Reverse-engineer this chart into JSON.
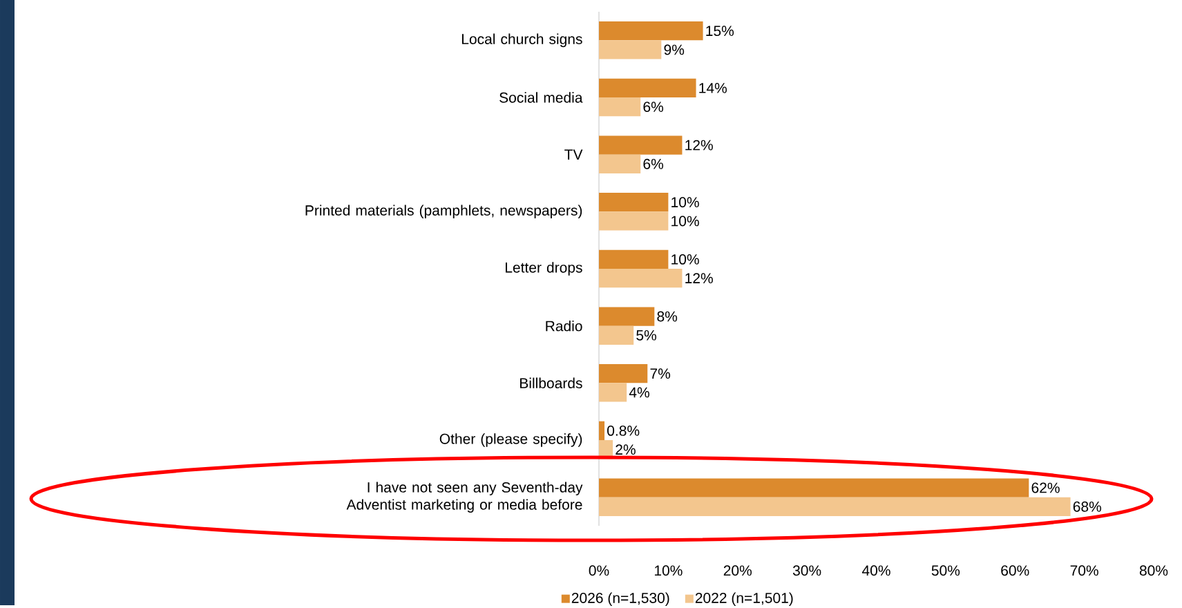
{
  "chart_data": {
    "type": "bar",
    "orientation": "horizontal",
    "categories": [
      "Local church signs",
      "Social media",
      "TV",
      "Printed materials (pamphlets, newspapers)",
      "Letter drops",
      "Radio",
      "Billboards",
      "Other (please specify)",
      "I have not seen any Seventh-day Adventist marketing or media before"
    ],
    "series": [
      {
        "name": "2026 (n=1,530)",
        "color": "#dc8a2d",
        "values": [
          15,
          14,
          12,
          10,
          10,
          8,
          7,
          0.8,
          62
        ],
        "value_labels": [
          "15%",
          "14%",
          "12%",
          "10%",
          "10%",
          "8%",
          "7%",
          "0.8%",
          "62%"
        ]
      },
      {
        "name": "2022 (n=1,501)",
        "color": "#f3c68e",
        "values": [
          9,
          6,
          6,
          10,
          12,
          5,
          4,
          2,
          68
        ],
        "value_labels": [
          "9%",
          "6%",
          "6%",
          "10%",
          "12%",
          "5%",
          "4%",
          "2%",
          "68%"
        ]
      }
    ],
    "xlim": [
      0,
      80
    ],
    "xticks": [
      {
        "value": 0,
        "label": "0%"
      },
      {
        "value": 10,
        "label": "10%"
      },
      {
        "value": 20,
        "label": "20%"
      },
      {
        "value": 30,
        "label": "30%"
      },
      {
        "value": 40,
        "label": "40%"
      },
      {
        "value": 50,
        "label": "50%"
      },
      {
        "value": 60,
        "label": "60%"
      },
      {
        "value": 70,
        "label": "70%"
      },
      {
        "value": 80,
        "label": "80%"
      }
    ],
    "grid": false,
    "legend": "bottom"
  }
}
